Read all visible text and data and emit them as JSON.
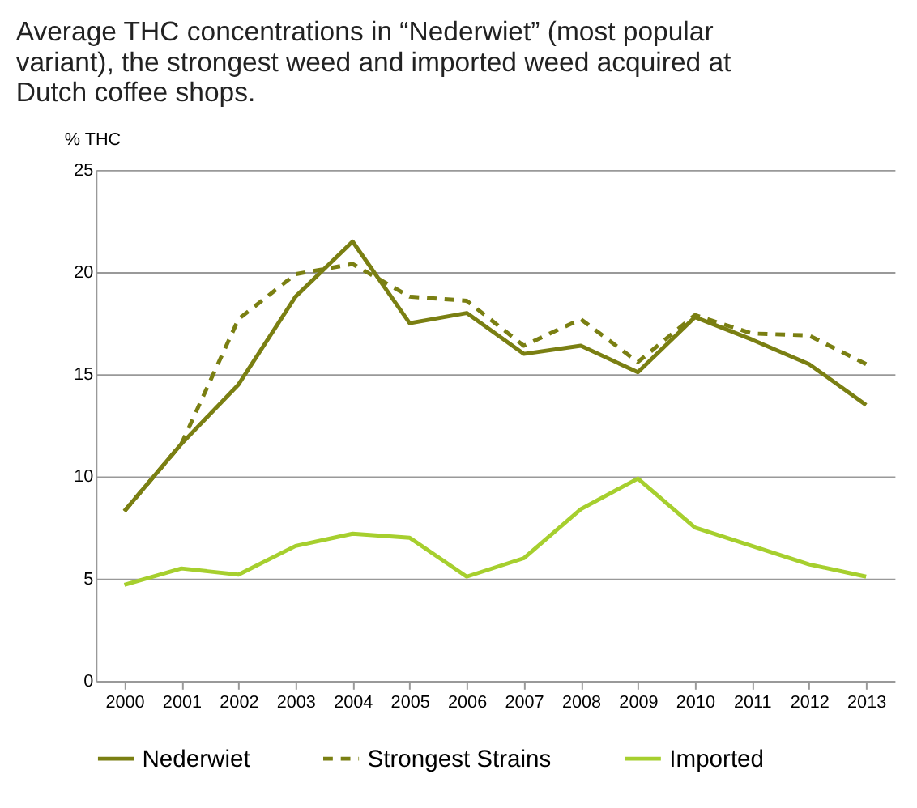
{
  "chart_data": {
    "type": "line",
    "title": "Average THC concentrations in “Nederwiet” (most popular variant), the strongest weed and imported weed acquired at Dutch coffee shops.",
    "ylabel": "% THC",
    "categories": [
      "2000",
      "2001",
      "2002",
      "2003",
      "2004",
      "2005",
      "2006",
      "2007",
      "2008",
      "2009",
      "2010",
      "2011",
      "2012",
      "2013"
    ],
    "series": [
      {
        "name": "Nederwiet",
        "color": "#7a7f12",
        "line_style": "solid",
        "values": [
          8.3,
          11.6,
          14.5,
          18.8,
          21.5,
          17.5,
          18.0,
          16.0,
          16.4,
          15.1,
          17.8,
          16.7,
          15.5,
          13.5
        ]
      },
      {
        "name": "Strongest Strains",
        "color": "#7a7f12",
        "line_style": "dashed",
        "values": [
          8.3,
          11.6,
          17.7,
          19.9,
          20.4,
          18.8,
          18.6,
          16.4,
          17.7,
          15.6,
          17.9,
          17.0,
          16.9,
          15.5
        ]
      },
      {
        "name": "Imported",
        "color": "#a6cf2e",
        "line_style": "solid",
        "values": [
          4.7,
          5.5,
          5.2,
          6.6,
          7.2,
          7.0,
          5.1,
          6.0,
          8.4,
          9.9,
          7.5,
          6.6,
          5.7,
          5.1
        ]
      }
    ],
    "ylim": [
      0,
      25
    ],
    "yticks": [
      0,
      5,
      10,
      15,
      20,
      25
    ],
    "grid": "y",
    "legend": "bottom",
    "marker": "none"
  }
}
